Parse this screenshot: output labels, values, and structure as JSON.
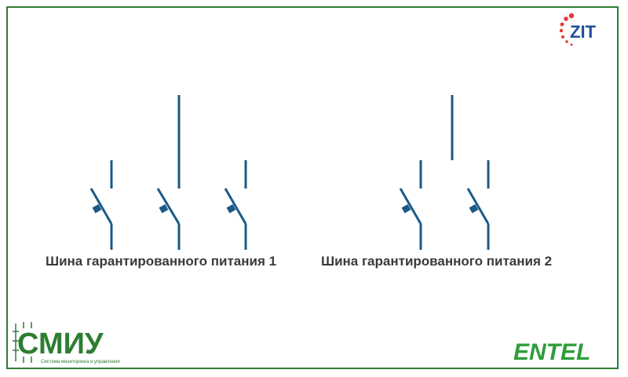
{
  "buses": [
    {
      "label": "Шина гарантированного питания 1",
      "breakers": 3
    },
    {
      "label": "Шина гарантированного питания 2",
      "breakers": 2
    }
  ],
  "logos": {
    "zit": {
      "text": "ZIT"
    },
    "smiu": {
      "text": "СМИУ",
      "caption": "Система мониторинга и управления"
    },
    "entel": {
      "text": "ENTEL"
    }
  },
  "colors": {
    "frame": "#2e7d32",
    "line": "#1b5a86",
    "label": "#3a3a3a",
    "zit_dot": "#e53935",
    "zit_text": "#1f4e9a",
    "green": "#2e7d32"
  }
}
